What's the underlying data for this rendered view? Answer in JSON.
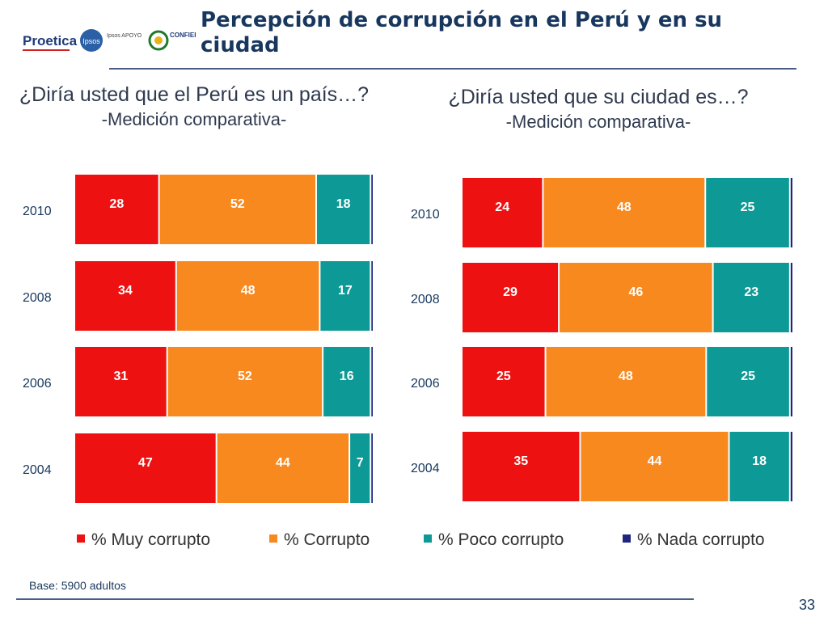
{
  "header": {
    "title": "Percepción de corrupción en el Perú y en su ciudad",
    "logos": {
      "proetica": "Proetica",
      "ipsos": "Ipsos",
      "ipsos_apoyo": "Ipsos APOYO",
      "confiep": "CONFIEP"
    }
  },
  "colors": {
    "muy": "#ee1111",
    "corrupto": "#f7891f",
    "poco": "#0d9a96",
    "nada": "#1f2580"
  },
  "left": {
    "question": "¿Diría usted que el Perú es un país…?",
    "subtitle": "-Medición comparativa-"
  },
  "right": {
    "question": "¿Diría usted que su ciudad es…?",
    "subtitle": "-Medición comparativa-"
  },
  "legend": {
    "muy": "% Muy corrupto",
    "corrupto": "% Corrupto",
    "poco": "% Poco corrupto",
    "nada": "% Nada corrupto"
  },
  "footer": {
    "base": "Base: 5900 adultos",
    "page": "33"
  },
  "chart_data": [
    {
      "type": "bar",
      "orientation": "horizontal-stacked-100",
      "title": "¿Diría usted que el Perú es un país…?",
      "categories": [
        "2010",
        "2008",
        "2006",
        "2004"
      ],
      "series": [
        {
          "name": "% Muy corrupto",
          "values": [
            28,
            34,
            31,
            47
          ]
        },
        {
          "name": "% Corrupto",
          "values": [
            52,
            48,
            52,
            44
          ]
        },
        {
          "name": "% Poco corrupto",
          "values": [
            18,
            17,
            16,
            7
          ]
        },
        {
          "name": "% Nada corrupto",
          "values": [
            1,
            1,
            1,
            1
          ]
        }
      ],
      "labels": {
        "2010": [
          "28",
          "52",
          "18"
        ],
        "2008": [
          "34",
          "48",
          "17"
        ],
        "2006": [
          "31",
          "52",
          "16"
        ],
        "2004": [
          "47",
          "44",
          "7"
        ]
      }
    },
    {
      "type": "bar",
      "orientation": "horizontal-stacked-100",
      "title": "¿Diría usted que su ciudad es…?",
      "categories": [
        "2010",
        "2008",
        "2006",
        "2004"
      ],
      "series": [
        {
          "name": "% Muy corrupto",
          "values": [
            24,
            29,
            25,
            35
          ]
        },
        {
          "name": "% Corrupto",
          "values": [
            48,
            46,
            48,
            44
          ]
        },
        {
          "name": "% Poco corrupto",
          "values": [
            25,
            23,
            25,
            18
          ]
        },
        {
          "name": "% Nada corrupto",
          "values": [
            1,
            1,
            1,
            1
          ]
        }
      ],
      "labels": {
        "2010": [
          "24",
          "48",
          "25"
        ],
        "2008": [
          "29",
          "46",
          "23"
        ],
        "2006": [
          "25",
          "48",
          "25"
        ],
        "2004": [
          "35",
          "44",
          "18"
        ]
      }
    }
  ]
}
